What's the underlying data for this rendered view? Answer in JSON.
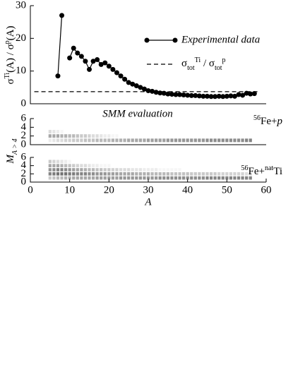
{
  "chart_data": [
    {
      "type": "line",
      "ylabel": [
        "σ",
        "Ti",
        "(A)  / σ",
        "p",
        "(A)"
      ],
      "xlim": [
        0,
        60
      ],
      "ylim": [
        0,
        30
      ],
      "yticks": [
        0,
        10,
        20,
        30
      ],
      "series": [
        {
          "name": "Experimental data",
          "color": "#000000",
          "marker": true,
          "x": [
            7,
            8,
            9,
            10,
            11,
            12,
            13,
            14,
            15,
            16,
            17,
            18,
            19,
            20,
            21,
            22,
            23,
            24,
            25,
            26,
            27,
            28,
            29,
            30,
            31,
            32,
            33,
            34,
            35,
            36,
            37,
            38,
            39,
            40,
            41,
            42,
            43,
            44,
            45,
            46,
            47,
            48,
            49,
            50,
            51,
            52,
            53,
            54,
            55,
            56,
            57
          ],
          "values": [
            8.5,
            27,
            null,
            14,
            17,
            15.5,
            14.5,
            13,
            10.5,
            13,
            13.5,
            12,
            12.5,
            11.5,
            10.5,
            9.5,
            8.5,
            7.5,
            6.5,
            6,
            5.5,
            5,
            4.5,
            4,
            3.8,
            3.5,
            3.3,
            3.2,
            3,
            2.9,
            2.8,
            2.8,
            2.7,
            2.6,
            2.5,
            2.5,
            2.4,
            2.3,
            2.3,
            2.2,
            2.2,
            2.3,
            2.2,
            2.3,
            2.4,
            2.3,
            2.8,
            2.6,
            3.2,
            3,
            3.1
          ]
        },
        {
          "name": [
            "σ",
            "tot",
            "Ti",
            " / σ",
            "tot",
            "p"
          ],
          "color": "#000000",
          "dashed": true,
          "x": [
            1,
            58
          ],
          "values": [
            3.7,
            3.7
          ]
        }
      ]
    },
    {
      "type": "heatmap",
      "title": "SMM evaluation",
      "label": [
        "56",
        "Fe+",
        "p"
      ],
      "xlim": [
        0,
        60
      ],
      "ylim": [
        0,
        6
      ],
      "yticks": [
        0,
        2,
        4,
        6
      ],
      "color": "#505050",
      "x": [
        5,
        6,
        7,
        8,
        9,
        10,
        11,
        12,
        13,
        14,
        15,
        16,
        17,
        18,
        19,
        20,
        21,
        22,
        23,
        24,
        25,
        26,
        27,
        28,
        29,
        30,
        31,
        32,
        33,
        34,
        35,
        36,
        37,
        38,
        39,
        40,
        41,
        42,
        43,
        44,
        45,
        46,
        47,
        48,
        49,
        50,
        51,
        52,
        53,
        54,
        55,
        56
      ],
      "rows": [
        {
          "M": 1,
          "values": [
            0.1,
            0.15,
            0.2,
            0.2,
            0.25,
            0.25,
            0.3,
            0.3,
            0.3,
            0.35,
            0.35,
            0.35,
            0.4,
            0.4,
            0.4,
            0.4,
            0.45,
            0.45,
            0.45,
            0.45,
            0.5,
            0.5,
            0.5,
            0.5,
            0.5,
            0.55,
            0.55,
            0.55,
            0.55,
            0.55,
            0.6,
            0.6,
            0.6,
            0.6,
            0.6,
            0.6,
            0.6,
            0.6,
            0.6,
            0.6,
            0.65,
            0.65,
            0.65,
            0.65,
            0.65,
            0.65,
            0.65,
            0.65,
            0.65,
            0.65,
            0.7,
            0.7
          ]
        },
        {
          "M": 2,
          "values": [
            0.5,
            0.5,
            0.5,
            0.45,
            0.45,
            0.4,
            0.4,
            0.35,
            0.3,
            0.3,
            0.25,
            0.2,
            0.2,
            0.15,
            0.1,
            0.1,
            0.05,
            0.05,
            0,
            0,
            0,
            0,
            0,
            0,
            0,
            0,
            0,
            0,
            0,
            0,
            0,
            0,
            0,
            0,
            0,
            0,
            0,
            0,
            0,
            0,
            0,
            0,
            0,
            0,
            0,
            0,
            0,
            0,
            0,
            0,
            0,
            0
          ]
        },
        {
          "M": 3,
          "values": [
            0.2,
            0.15,
            0.1,
            0.05,
            0,
            0,
            0,
            0,
            0,
            0,
            0,
            0,
            0,
            0,
            0,
            0,
            0,
            0,
            0,
            0,
            0,
            0,
            0,
            0,
            0,
            0,
            0,
            0,
            0,
            0,
            0,
            0,
            0,
            0,
            0,
            0,
            0,
            0,
            0,
            0,
            0,
            0,
            0,
            0,
            0,
            0,
            0,
            0,
            0,
            0,
            0,
            0
          ]
        }
      ]
    },
    {
      "type": "heatmap",
      "label": [
        "56",
        "Fe+",
        "nat",
        "Ti"
      ],
      "ylabel": [
        "M",
        "A > 4"
      ],
      "xlabel": "A",
      "xlim": [
        0,
        60
      ],
      "xticks": [
        0,
        10,
        20,
        30,
        40,
        50,
        60
      ],
      "ylim": [
        0,
        6
      ],
      "yticks": [
        0,
        2,
        4,
        6
      ],
      "color": "#505050",
      "x": [
        5,
        6,
        7,
        8,
        9,
        10,
        11,
        12,
        13,
        14,
        15,
        16,
        17,
        18,
        19,
        20,
        21,
        22,
        23,
        24,
        25,
        26,
        27,
        28,
        29,
        30,
        31,
        32,
        33,
        34,
        35,
        36,
        37,
        38,
        39,
        40,
        41,
        42,
        43,
        44,
        45,
        46,
        47,
        48,
        49,
        50,
        51,
        52,
        53,
        54,
        55,
        56
      ],
      "rows": [
        {
          "M": 1,
          "values": [
            0.3,
            0.35,
            0.4,
            0.4,
            0.45,
            0.45,
            0.5,
            0.5,
            0.5,
            0.5,
            0.5,
            0.5,
            0.55,
            0.55,
            0.55,
            0.55,
            0.55,
            0.55,
            0.6,
            0.6,
            0.6,
            0.6,
            0.6,
            0.6,
            0.6,
            0.6,
            0.6,
            0.6,
            0.65,
            0.65,
            0.65,
            0.65,
            0.65,
            0.65,
            0.65,
            0.65,
            0.65,
            0.65,
            0.65,
            0.65,
            0.7,
            0.7,
            0.7,
            0.7,
            0.7,
            0.7,
            0.7,
            0.7,
            0.7,
            0.7,
            0.7,
            0.7
          ]
        },
        {
          "M": 2,
          "values": [
            0.7,
            0.75,
            0.8,
            0.8,
            0.8,
            0.75,
            0.75,
            0.7,
            0.7,
            0.7,
            0.65,
            0.65,
            0.6,
            0.6,
            0.6,
            0.55,
            0.55,
            0.55,
            0.5,
            0.5,
            0.5,
            0.5,
            0.45,
            0.45,
            0.45,
            0.45,
            0.4,
            0.4,
            0.4,
            0.4,
            0.4,
            0.35,
            0.35,
            0.35,
            0.35,
            0.35,
            0.3,
            0.3,
            0.3,
            0.3,
            0.3,
            0.3,
            0.3,
            0.25,
            0.25,
            0.25,
            0.25,
            0.25,
            0.25,
            0.25,
            0.2,
            0.2
          ]
        },
        {
          "M": 3,
          "values": [
            0.6,
            0.65,
            0.7,
            0.7,
            0.65,
            0.6,
            0.55,
            0.5,
            0.5,
            0.45,
            0.4,
            0.4,
            0.35,
            0.35,
            0.3,
            0.3,
            0.25,
            0.25,
            0.2,
            0.2,
            0.2,
            0.15,
            0.15,
            0.15,
            0.1,
            0.1,
            0.1,
            0.1,
            0.05,
            0.05,
            0.05,
            0.05,
            0.05,
            0.05,
            0,
            0,
            0,
            0,
            0,
            0,
            0,
            0,
            0,
            0,
            0,
            0,
            0,
            0,
            0,
            0,
            0,
            0
          ]
        },
        {
          "M": 4,
          "values": [
            0.5,
            0.5,
            0.5,
            0.45,
            0.4,
            0.35,
            0.3,
            0.25,
            0.2,
            0.2,
            0.15,
            0.1,
            0.1,
            0.05,
            0.05,
            0.05,
            0,
            0,
            0,
            0,
            0,
            0,
            0,
            0,
            0,
            0,
            0,
            0,
            0,
            0,
            0,
            0,
            0,
            0,
            0,
            0,
            0,
            0,
            0,
            0,
            0,
            0,
            0,
            0,
            0,
            0,
            0,
            0,
            0,
            0,
            0,
            0
          ]
        },
        {
          "M": 5,
          "values": [
            0.3,
            0.25,
            0.2,
            0.15,
            0.1,
            0.05,
            0,
            0,
            0,
            0,
            0,
            0,
            0,
            0,
            0,
            0,
            0,
            0,
            0,
            0,
            0,
            0,
            0,
            0,
            0,
            0,
            0,
            0,
            0,
            0,
            0,
            0,
            0,
            0,
            0,
            0,
            0,
            0,
            0,
            0,
            0,
            0,
            0,
            0,
            0,
            0,
            0,
            0,
            0,
            0,
            0,
            0
          ]
        }
      ]
    }
  ]
}
